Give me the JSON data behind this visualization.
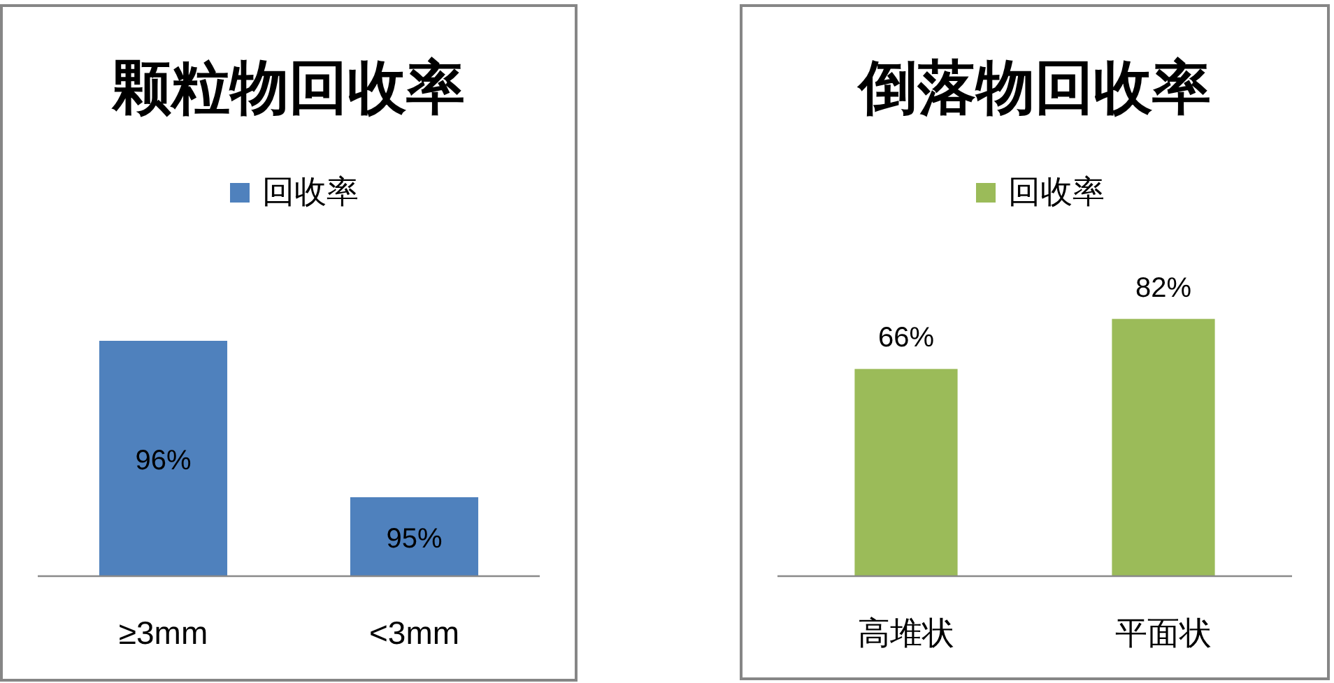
{
  "chart_data": [
    {
      "type": "bar",
      "title": "颗粒物回收率",
      "categories": [
        "≥3mm",
        "<3mm"
      ],
      "series": [
        {
          "name": "回收率",
          "color": "#4f81bd",
          "values": [
            96,
            95
          ],
          "value_labels": [
            "96%",
            "95%"
          ]
        }
      ],
      "ylim": [
        94.5,
        96
      ],
      "legend": "top",
      "tick_labels": "x"
    },
    {
      "type": "bar",
      "title": "倒落物回收率",
      "categories": [
        "高堆状",
        "平面状"
      ],
      "series": [
        {
          "name": "回收率",
          "color": "#9bbb59",
          "values": [
            66,
            82
          ],
          "value_labels": [
            "66%",
            "82%"
          ]
        }
      ],
      "legend": "top",
      "tick_labels": "x"
    }
  ]
}
